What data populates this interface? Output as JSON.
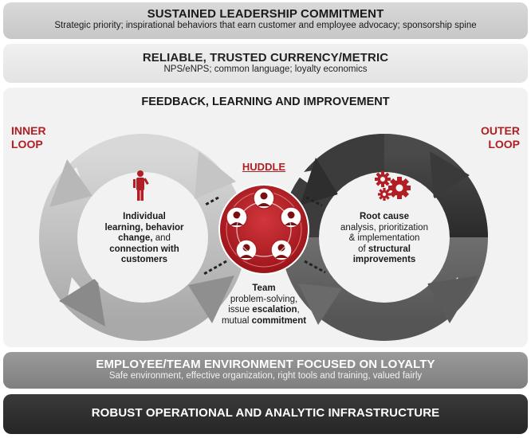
{
  "bands": {
    "leadership": {
      "title": "SUSTAINED LEADERSHIP COMMITMENT",
      "subtitle": "Strategic priority; inspirational behaviors that earn customer and employee advocacy; sponsorship spine"
    },
    "metric": {
      "title": "RELIABLE, TRUSTED CURRENCY/METRIC",
      "subtitle": "NPS/eNPS; common language; loyalty economics"
    },
    "environment": {
      "title": "EMPLOYEE/TEAM ENVIRONMENT FOCUSED ON LOYALTY",
      "subtitle": "Safe environment, effective organization, right tools and training, valued fairly"
    },
    "infrastructure": {
      "title": "ROBUST OPERATIONAL AND ANALYTIC INFRASTRUCTURE"
    }
  },
  "panel": {
    "title": "FEEDBACK, LEARNING AND IMPROVEMENT",
    "inner_loop": {
      "line1": "INNER",
      "line2": "LOOP"
    },
    "outer_loop": {
      "line1": "OUTER",
      "line2": "LOOP"
    },
    "huddle": "HUDDLE",
    "left_text": {
      "l1": "Individual",
      "l2": "learning, behavior",
      "l3a": "change,",
      "l3b": " and",
      "l4": "connection with",
      "l5": "customers"
    },
    "right_text": {
      "l1": "Root cause",
      "l2": "analysis, prioritization",
      "l3": "& implementation",
      "l4a": "of ",
      "l4b": "structural",
      "l5": "improvements"
    },
    "team_text": {
      "l1": "Team",
      "l2": "problem-solving,",
      "l3a": "issue ",
      "l3b": "escalation",
      "l3c": ",",
      "l4a": "mutual ",
      "l4b": "commitment"
    }
  },
  "colors": {
    "accent_red": "#b11e23",
    "light_gray": "#c9c9c9",
    "mid_gray": "#8c8c8c",
    "dark_gray": "#333333"
  }
}
